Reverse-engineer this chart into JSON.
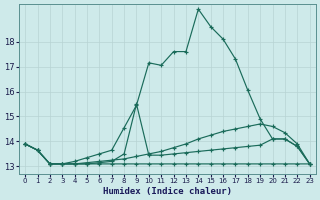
{
  "title": "",
  "xlabel": "Humidex (Indice chaleur)",
  "ylabel": "",
  "bg_color": "#ceeaea",
  "line_color": "#1a6b5a",
  "grid_color": "#b8d4d4",
  "xlim": [
    -0.5,
    23.5
  ],
  "ylim": [
    12.7,
    19.5
  ],
  "yticks": [
    13,
    14,
    15,
    16,
    17,
    18
  ],
  "xticks": [
    0,
    1,
    2,
    3,
    4,
    5,
    6,
    7,
    8,
    9,
    10,
    11,
    12,
    13,
    14,
    15,
    16,
    17,
    18,
    19,
    20,
    21,
    22,
    23
  ],
  "series": [
    {
      "x": [
        0,
        1,
        2,
        3,
        4,
        5,
        6,
        7,
        8,
        9,
        10,
        11,
        12,
        13,
        14,
        15,
        16,
        17,
        18,
        19,
        20,
        21,
        22,
        23
      ],
      "y": [
        13.9,
        13.65,
        13.1,
        13.1,
        13.2,
        13.35,
        13.5,
        13.65,
        14.55,
        15.45,
        17.15,
        17.05,
        17.6,
        17.6,
        19.3,
        18.6,
        18.1,
        17.3,
        16.05,
        14.9,
        14.1,
        14.1,
        13.8,
        13.1
      ]
    },
    {
      "x": [
        0,
        1,
        2,
        3,
        4,
        5,
        6,
        7,
        8,
        9,
        10,
        11,
        12,
        13,
        14,
        15,
        16,
        17,
        18,
        19,
        20,
        21,
        22,
        23
      ],
      "y": [
        13.9,
        13.65,
        13.1,
        13.1,
        13.1,
        13.1,
        13.15,
        13.2,
        13.5,
        15.5,
        13.45,
        13.45,
        13.5,
        13.55,
        13.6,
        13.65,
        13.7,
        13.75,
        13.8,
        13.85,
        14.1,
        14.1,
        13.8,
        13.1
      ]
    },
    {
      "x": [
        0,
        1,
        2,
        3,
        4,
        5,
        6,
        7,
        8,
        9,
        10,
        11,
        12,
        13,
        14,
        15,
        16,
        17,
        18,
        19,
        20,
        21,
        22,
        23
      ],
      "y": [
        13.9,
        13.65,
        13.1,
        13.1,
        13.1,
        13.15,
        13.2,
        13.25,
        13.3,
        13.4,
        13.5,
        13.6,
        13.75,
        13.9,
        14.1,
        14.25,
        14.4,
        14.5,
        14.6,
        14.7,
        14.6,
        14.35,
        13.9,
        13.1
      ]
    },
    {
      "x": [
        0,
        1,
        2,
        3,
        4,
        5,
        6,
        7,
        8,
        9,
        10,
        11,
        12,
        13,
        14,
        15,
        16,
        17,
        18,
        19,
        20,
        21,
        22,
        23
      ],
      "y": [
        13.9,
        13.65,
        13.1,
        13.1,
        13.1,
        13.1,
        13.1,
        13.1,
        13.1,
        13.1,
        13.1,
        13.1,
        13.1,
        13.1,
        13.1,
        13.1,
        13.1,
        13.1,
        13.1,
        13.1,
        13.1,
        13.1,
        13.1,
        13.1
      ]
    }
  ]
}
